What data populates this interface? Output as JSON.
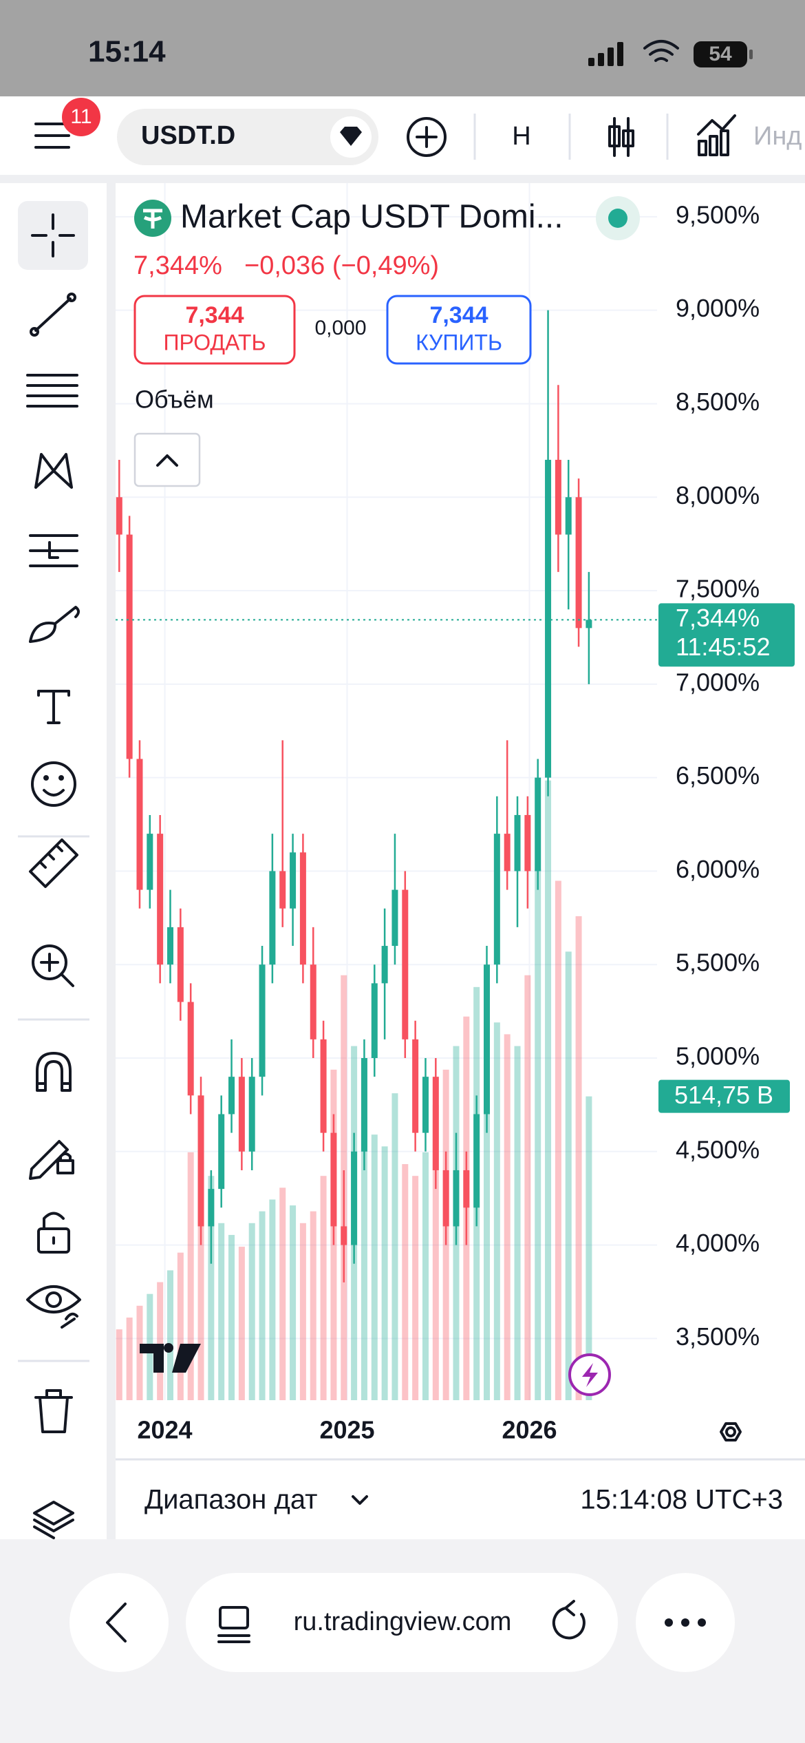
{
  "status_bar": {
    "time": "15:14",
    "battery": "54"
  },
  "toolbar": {
    "badge": "11",
    "symbol": "USDT.D",
    "interval": "H",
    "indicators": "Инд"
  },
  "legend": {
    "title": "Market Cap USDT Domi...",
    "price": "7,344%",
    "change": "−0,036 (−0,49%)",
    "sell_price": "7,344",
    "sell_label": "ПРОДАТЬ",
    "spread": "0,000",
    "buy_price": "7,344",
    "buy_label": "КУПИТЬ",
    "volume_label": "Объём"
  },
  "chart_data": {
    "type": "candlestick",
    "x": [
      2023.75,
      2023.806,
      2023.862,
      2023.918,
      2023.974,
      2024.03,
      2024.086,
      2024.142,
      2024.198,
      2024.254,
      2024.31,
      2024.366,
      2024.422,
      2024.478,
      2024.534,
      2024.59,
      2024.646,
      2024.702,
      2024.758,
      2024.814,
      2024.87,
      2024.926,
      2024.982,
      2025.038,
      2025.094,
      2025.15,
      2025.206,
      2025.262,
      2025.318,
      2025.374,
      2025.43,
      2025.486,
      2025.542,
      2025.598,
      2025.654,
      2025.71,
      2025.766,
      2025.822,
      2025.878,
      2025.934,
      2025.99,
      2026.046,
      2026.102,
      2026.158,
      2026.214,
      2026.27,
      2026.326
    ],
    "open": [
      8.0,
      7.8,
      6.6,
      5.9,
      6.2,
      5.5,
      5.7,
      5.3,
      4.8,
      4.1,
      4.3,
      4.7,
      4.9,
      4.5,
      4.9,
      5.5,
      6.0,
      5.8,
      6.1,
      5.5,
      5.1,
      4.6,
      4.1,
      4.0,
      4.5,
      5.0,
      5.4,
      5.6,
      5.9,
      5.1,
      4.6,
      4.9,
      4.4,
      4.1,
      4.4,
      4.2,
      4.7,
      5.5,
      6.2,
      6.0,
      6.3,
      6.0,
      6.5,
      8.2,
      7.8,
      8.0,
      7.3
    ],
    "high": [
      8.2,
      7.9,
      6.7,
      6.3,
      6.3,
      5.9,
      5.8,
      5.4,
      4.9,
      4.4,
      4.8,
      5.1,
      5.0,
      5.0,
      5.6,
      6.2,
      6.7,
      6.2,
      6.2,
      5.7,
      5.2,
      4.7,
      4.4,
      4.6,
      5.1,
      5.5,
      5.8,
      6.2,
      6.0,
      5.2,
      5.0,
      5.0,
      4.5,
      4.6,
      4.5,
      4.8,
      5.6,
      6.4,
      6.7,
      6.4,
      6.4,
      6.6,
      9.0,
      8.6,
      8.2,
      8.1,
      7.6
    ],
    "low": [
      7.6,
      6.5,
      5.8,
      5.8,
      5.4,
      5.4,
      5.2,
      4.7,
      4.0,
      3.9,
      4.2,
      4.6,
      4.4,
      4.4,
      4.8,
      5.4,
      5.7,
      5.6,
      5.4,
      5.0,
      4.5,
      4.0,
      3.8,
      3.9,
      4.4,
      4.9,
      5.1,
      5.5,
      5.0,
      4.5,
      4.5,
      4.3,
      4.0,
      4.0,
      4.0,
      4.1,
      4.6,
      5.4,
      5.9,
      5.7,
      5.8,
      5.9,
      6.4,
      7.6,
      7.4,
      7.2,
      7.0
    ],
    "close": [
      7.8,
      6.6,
      5.9,
      6.2,
      5.5,
      5.7,
      5.3,
      4.8,
      4.1,
      4.3,
      4.7,
      4.9,
      4.5,
      4.9,
      5.5,
      6.0,
      5.8,
      6.1,
      5.5,
      5.1,
      4.6,
      4.1,
      4.0,
      4.5,
      5.0,
      5.4,
      5.6,
      5.9,
      5.1,
      4.6,
      4.9,
      4.4,
      4.1,
      4.4,
      4.2,
      4.7,
      5.5,
      6.2,
      6.0,
      6.3,
      6.0,
      6.5,
      8.2,
      7.8,
      8.0,
      7.3,
      7.344
    ],
    "up_color": "#22ab94",
    "down_color": "#f7525f",
    "xlim": [
      2023.73,
      2026.7
    ],
    "xticks": [
      2024,
      2025,
      2026
    ],
    "ylim": [
      3.17,
      9.68
    ],
    "yticks": [
      {
        "value": 3.5,
        "label": "3,500%"
      },
      {
        "value": 4.0,
        "label": "4,000%"
      },
      {
        "value": 4.5,
        "label": "4,500%"
      },
      {
        "value": 5.0,
        "label": "5,000%"
      },
      {
        "value": 5.5,
        "label": "5,500%"
      },
      {
        "value": 6.0,
        "label": "6,000%"
      },
      {
        "value": 6.5,
        "label": "6,500%"
      },
      {
        "value": 7.0,
        "label": "7,000%"
      },
      {
        "value": 7.5,
        "label": "7,500%"
      },
      {
        "value": 8.0,
        "label": "8,000%"
      },
      {
        "value": 8.5,
        "label": "8,500%"
      },
      {
        "value": 9.0,
        "label": "9,000%"
      },
      {
        "value": 9.5,
        "label": "9,500%"
      }
    ],
    "grid": true,
    "last_price": {
      "value": 7.344,
      "label": "7,344%",
      "countdown": "11:45:52"
    },
    "volume": {
      "values": [
        120,
        140,
        160,
        180,
        200,
        220,
        250,
        420,
        460,
        380,
        300,
        280,
        260,
        300,
        320,
        340,
        360,
        330,
        300,
        320,
        380,
        560,
        720,
        600,
        480,
        450,
        430,
        520,
        400,
        380,
        420,
        500,
        560,
        600,
        650,
        700,
        680,
        640,
        620,
        600,
        720,
        900,
        1050,
        880,
        760,
        820,
        514.75
      ],
      "last_label": "514,75 B",
      "ylim": [
        0,
        1150
      ]
    }
  },
  "bottom_bar": {
    "date_range": "Диапазон дат",
    "clock": "15:14:08 UTC+3"
  },
  "browser_bar": {
    "url": "ru.tradingview.com"
  }
}
